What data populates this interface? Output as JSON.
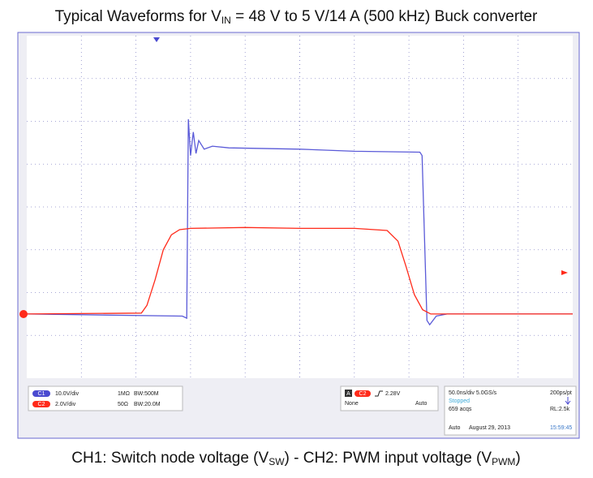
{
  "chart_data": {
    "type": "line",
    "title": [
      "Typical Waveforms for V",
      "IN",
      " = 48 V to 5 V/14 A (500 kHz) Buck converter"
    ],
    "caption": [
      "CH1: Switch node voltage (V",
      "SW",
      ") - CH2: PWM input voltage (V",
      "PWM",
      ")"
    ],
    "xlim": [
      0,
      10
    ],
    "ylim": [
      -4,
      4
    ],
    "grid": true,
    "series": [
      {
        "name": "C1",
        "color": "#5a5ad8",
        "x": [
          0,
          2.85,
          2.93,
          2.96,
          3.0,
          3.05,
          3.1,
          3.15,
          3.25,
          3.4,
          3.7,
          5,
          6,
          7.2,
          7.24,
          7.33,
          7.38,
          7.5,
          7.7,
          10
        ],
        "values": [
          -2.5,
          -2.55,
          -2.6,
          2.05,
          1.2,
          1.75,
          1.25,
          1.55,
          1.35,
          1.42,
          1.38,
          1.35,
          1.3,
          1.28,
          1.2,
          -2.65,
          -2.75,
          -2.55,
          -2.5,
          -2.5
        ]
      },
      {
        "name": "C2",
        "color": "#ff2a1a",
        "x": [
          0,
          2.1,
          2.2,
          2.35,
          2.5,
          2.65,
          2.8,
          3.0,
          4,
          5,
          6,
          6.6,
          6.8,
          6.95,
          7.1,
          7.25,
          7.4,
          10
        ],
        "values": [
          -2.5,
          -2.48,
          -2.3,
          -1.7,
          -1.0,
          -0.65,
          -0.53,
          -0.5,
          -0.48,
          -0.5,
          -0.5,
          -0.55,
          -0.8,
          -1.4,
          -2.05,
          -2.4,
          -2.5,
          -2.5
        ]
      }
    ]
  },
  "panel": {
    "ch1": [
      "10.0V/div",
      "1MΩ",
      "BW:500M"
    ],
    "ch2": [
      "2.0V/div",
      "50Ω",
      "BW:20.0M"
    ],
    "trigger": [
      "A",
      "2.28V",
      "None",
      "Auto"
    ],
    "timebase": [
      "50.0ns/div 5.0GS/s",
      "200ps/pt",
      "Stopped",
      "659 acqs",
      "RL:2.5k",
      "Auto",
      "August 29, 2013",
      "15:59:45"
    ]
  }
}
